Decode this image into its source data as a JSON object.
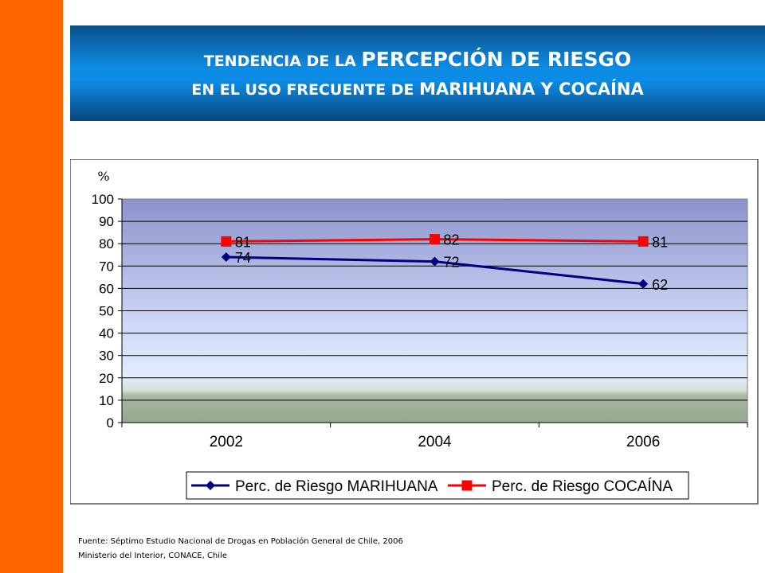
{
  "title": {
    "line1_small": "TENDENCIA DE LA",
    "line1_big": "PERCEPCIÓN DE RIESGO",
    "line2_small": "EN EL USO FRECUENTE DE",
    "line2_big": "MARIHUANA Y COCAÍNA"
  },
  "colors": {
    "side_bar": "#ff6600",
    "banner": "#0d8ce6",
    "series_marihuana": "#000080",
    "series_cocaina": "#ff0000"
  },
  "chart_data": {
    "type": "line",
    "ylabel": "%",
    "ylim": [
      0,
      100
    ],
    "yticks": [
      0,
      10,
      20,
      30,
      40,
      50,
      60,
      70,
      80,
      90,
      100
    ],
    "categories": [
      "2002",
      "2004",
      "2006"
    ],
    "grid": true,
    "legend_position": "bottom",
    "series": [
      {
        "name": "Perc. de Riesgo MARIHUANA",
        "values": [
          74,
          72,
          62
        ],
        "labels": [
          "74",
          "72",
          "62"
        ],
        "marker": "diamond",
        "color": "#000080"
      },
      {
        "name": "Perc. de Riesgo COCAÍNA",
        "values": [
          81,
          82,
          81
        ],
        "labels": [
          "81",
          "82",
          "81"
        ],
        "marker": "square",
        "color": "#ff0000"
      }
    ]
  },
  "source": {
    "line1": "Fuente:  Séptimo Estudio Nacional de Drogas en Población General de Chile, 2006",
    "line2": "Ministerio del Interior, CONACE, Chile"
  }
}
